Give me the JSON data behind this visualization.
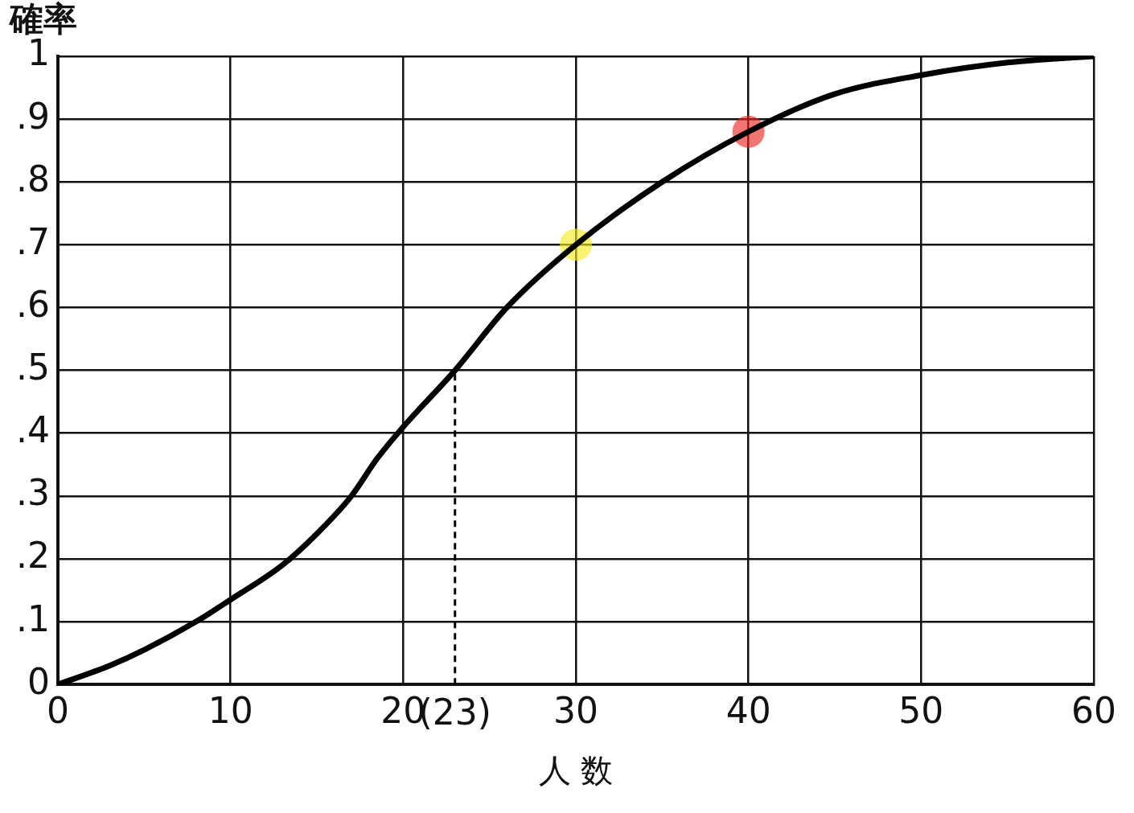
{
  "chart_data": {
    "type": "line",
    "xlabel": "人 数",
    "ylabel": "確率",
    "xlim": [
      0,
      60
    ],
    "xticks": [
      0,
      10,
      20,
      30,
      40,
      50,
      60
    ],
    "ylim": [
      0,
      1
    ],
    "yticks": [
      0,
      {
        "value": 0.1,
        "label": ".1"
      },
      {
        "value": 0.2,
        "label": ".2"
      },
      {
        "value": 0.3,
        "label": ".3"
      },
      {
        "value": 0.4,
        "label": ".4"
      },
      {
        "value": 0.5,
        "label": ".5"
      },
      {
        "value": 0.6,
        "label": ".6"
      },
      {
        "value": 0.7,
        "label": ".7"
      },
      {
        "value": 0.8,
        "label": ".8"
      },
      {
        "value": 0.9,
        "label": ".9"
      },
      1
    ],
    "grid": true,
    "legend": false,
    "marker": "none",
    "series": [
      {
        "type": "line",
        "color": "#000000",
        "x": [
          0,
          3,
          5,
          8,
          10,
          13,
          15,
          17,
          18.5,
          20,
          23,
          26,
          30,
          35,
          40,
          45,
          50,
          55,
          60
        ],
        "values": [
          0,
          0.03,
          0.055,
          0.1,
          0.135,
          0.19,
          0.24,
          0.3,
          0.36,
          0.41,
          0.5,
          0.6,
          0.7,
          0.8,
          0.88,
          0.94,
          0.97,
          0.99,
          1
        ]
      },
      {
        "type": "scatter",
        "marker": "circle",
        "color": "#f2ea1a",
        "x": [
          30
        ],
        "values": [
          0.7
        ]
      },
      {
        "type": "scatter",
        "marker": "circle",
        "color": "#e8231c",
        "x": [
          40
        ],
        "values": [
          0.88
        ]
      }
    ],
    "ref_lines": [
      {
        "axis": "x",
        "value": 23,
        "label": "(23)",
        "line_style": "dashed",
        "color": "#000000"
      }
    ]
  }
}
